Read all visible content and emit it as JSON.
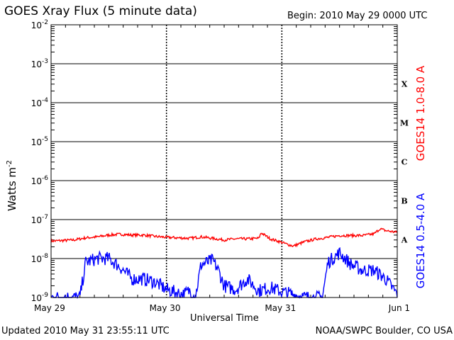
{
  "header": {
    "title": "GOES Xray Flux (5 minute data)",
    "begin": "Begin:  2010 May 29 0000 UTC"
  },
  "footer": {
    "updated": "Updated 2010 May 31 23:55:11 UTC",
    "credit": "NOAA/SWPC Boulder, CO USA"
  },
  "chart_data": {
    "type": "line",
    "title": "GOES Xray Flux (5 minute data)",
    "xlabel": "Universal Time",
    "ylabel": "Watts m",
    "ylabel_superscript": "-2",
    "yscale": "log",
    "ylim": [
      1e-09,
      0.01
    ],
    "xlim_days": [
      0,
      3
    ],
    "y_ticks": [
      {
        "base": "10",
        "exp": "-2"
      },
      {
        "base": "10",
        "exp": "-3"
      },
      {
        "base": "10",
        "exp": "-4"
      },
      {
        "base": "10",
        "exp": "-5"
      },
      {
        "base": "10",
        "exp": "-6"
      },
      {
        "base": "10",
        "exp": "-7"
      },
      {
        "base": "10",
        "exp": "-8"
      },
      {
        "base": "10",
        "exp": "-9"
      }
    ],
    "x_ticks": [
      "May 29",
      "May 30",
      "May 31",
      "Jun 1"
    ],
    "flare_classes": [
      "X",
      "M",
      "C",
      "B",
      "A"
    ],
    "grid": true,
    "series": [
      {
        "name": "GOES14 1.0-8.0 A",
        "color": "#ff0000",
        "x_days": [
          0,
          0.1,
          0.2,
          0.3,
          0.4,
          0.5,
          0.6,
          0.7,
          0.8,
          0.9,
          1.0,
          1.1,
          1.2,
          1.3,
          1.4,
          1.5,
          1.6,
          1.7,
          1.8,
          1.82,
          1.9,
          2.0,
          2.05,
          2.1,
          2.2,
          2.3,
          2.4,
          2.5,
          2.6,
          2.7,
          2.8,
          2.85,
          2.9,
          3.0
        ],
        "values": [
          2.8e-08,
          2.9e-08,
          3e-08,
          3.4e-08,
          3.6e-08,
          4e-08,
          4.2e-08,
          4e-08,
          4e-08,
          3.7e-08,
          3.5e-08,
          3.4e-08,
          3.3e-08,
          3.6e-08,
          3.3e-08,
          3e-08,
          3.2e-08,
          3.2e-08,
          3.3e-08,
          4.6e-08,
          3.2e-08,
          2.6e-08,
          2.3e-08,
          2.1e-08,
          2.7e-08,
          3.2e-08,
          3.5e-08,
          3.9e-08,
          3.9e-08,
          3.9e-08,
          4.3e-08,
          5.8e-08,
          5.2e-08,
          4.7e-08
        ]
      },
      {
        "name": "GOES14 0.5-4.0 A",
        "color": "#0000ff",
        "x_days": [
          0,
          0.1,
          0.25,
          0.3,
          0.4,
          0.5,
          0.6,
          0.7,
          0.8,
          0.9,
          1.0,
          1.1,
          1.15,
          1.2,
          1.25,
          1.3,
          1.4,
          1.45,
          1.5,
          1.6,
          1.7,
          1.8,
          1.9,
          2.0,
          2.1,
          2.2,
          2.3,
          2.35,
          2.4,
          2.5,
          2.6,
          2.7,
          2.8,
          2.9,
          3.0
        ],
        "values": [
          1e-09,
          1e-09,
          1e-09,
          8e-09,
          1e-08,
          1e-08,
          6e-09,
          3e-09,
          3e-09,
          2.5e-09,
          1.6e-09,
          1.3e-09,
          1.2e-09,
          1.5e-09,
          1e-09,
          7e-09,
          9e-09,
          5e-09,
          2e-09,
          1.6e-09,
          3e-09,
          1.5e-09,
          1.8e-09,
          1.4e-09,
          1.2e-09,
          1e-09,
          1e-09,
          1e-09,
          8e-09,
          1.4e-08,
          7e-09,
          5e-09,
          5e-09,
          3e-09,
          1.2e-09
        ]
      }
    ]
  }
}
